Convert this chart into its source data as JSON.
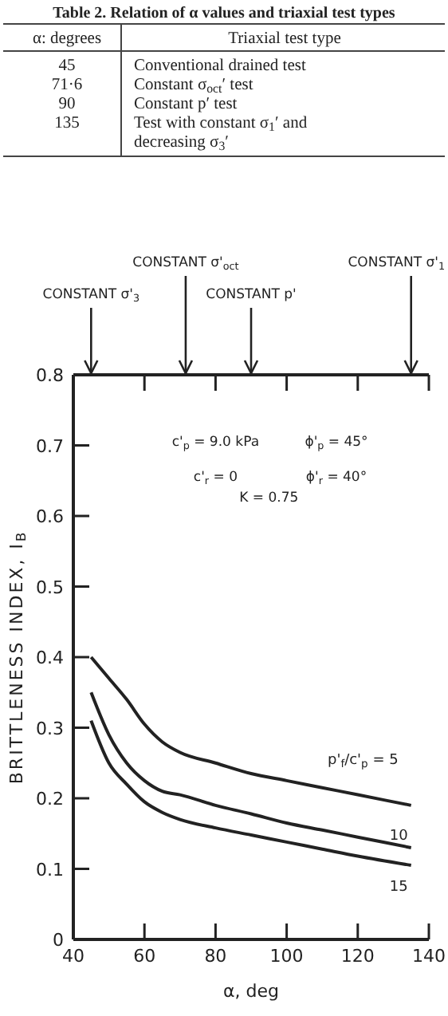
{
  "chart_data": [
    {
      "type": "other",
      "title": "Table 2.  Relation of α values and triaxial test types",
      "categories": [
        "α: degrees",
        "Triaxial test type"
      ],
      "annotations": [
        "45",
        "Conventional drained test",
        "71·6",
        "Constant σ$_{oct}$′ test",
        "90",
        "Constant p′ test",
        "135",
        "Test with constant σ$_{1}$′ and decreasing σ$_{3}$′"
      ]
    },
    {
      "type": "line",
      "xlabel": "α, deg",
      "ylabel": "BRITTLENESS INDEX, I$_{B}$",
      "xlim": [
        40,
        140
      ],
      "xticks": [
        40,
        60,
        80,
        100,
        120,
        140
      ],
      "ylim": [
        0,
        0.8
      ],
      "yticks": [
        0,
        0.1,
        0.2,
        0.3,
        0.4,
        0.5,
        0.6,
        0.7,
        0.8
      ],
      "x": [
        45,
        50,
        55,
        60,
        65,
        70,
        80,
        90,
        100,
        110,
        120,
        135
      ],
      "series": [
        {
          "name": "p'$_{f}$/c'$_{p}$ = 5",
          "color": "#222222",
          "values": [
            0.4,
            0.37,
            0.34,
            0.305,
            0.28,
            0.265,
            0.25,
            0.235,
            0.225,
            0.215,
            0.205,
            0.19
          ]
        },
        {
          "name": "10",
          "color": "#222222",
          "values": [
            0.35,
            0.29,
            0.25,
            0.225,
            0.21,
            0.205,
            0.19,
            0.178,
            0.165,
            0.155,
            0.145,
            0.13
          ]
        },
        {
          "name": "15",
          "color": "#222222",
          "values": [
            0.31,
            0.25,
            0.22,
            0.195,
            0.18,
            0.17,
            0.158,
            0.148,
            0.138,
            0.128,
            0.118,
            0.105
          ]
        }
      ],
      "ref_lines": [
        {
          "axis": "x",
          "value": 45,
          "label": "CONSTANT σ'$_{3}$"
        },
        {
          "axis": "x",
          "value": 71.6,
          "label": "CONSTANT σ'$_{oct}$"
        },
        {
          "axis": "x",
          "value": 90,
          "label": "CONSTANT p'"
        },
        {
          "axis": "x",
          "value": 135,
          "label": "CONSTANT σ'$_{1}$"
        }
      ],
      "annotations": [
        "c'$_{p}$ = 9.0 kPa",
        "ϕ'$_{p}$ = 45°",
        "c'$_{r}$ = 0",
        "ϕ'$_{r}$ = 40°",
        "K = 0.75"
      ]
    }
  ]
}
